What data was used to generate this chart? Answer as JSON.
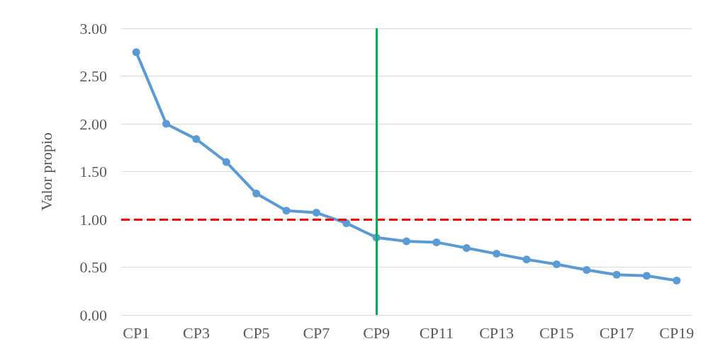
{
  "chart_data": {
    "type": "line",
    "ylabel": "Valor propio",
    "categories": [
      "CP1",
      null,
      "CP3",
      null,
      "CP5",
      null,
      "CP7",
      null,
      "CP9",
      null,
      "CP11",
      null,
      "CP13",
      null,
      "CP15",
      null,
      "CP17",
      null,
      "CP19"
    ],
    "series": [
      {
        "color": "#5b9bd5",
        "values": [
          2.75,
          2.0,
          1.84,
          1.6,
          1.27,
          1.09,
          1.07,
          0.96,
          0.81,
          0.77,
          0.76,
          0.7,
          0.64,
          0.58,
          0.53,
          0.47,
          0.42,
          0.41,
          0.36
        ]
      }
    ],
    "ylim": [
      0,
      3
    ],
    "yticks": [
      {
        "value": 0,
        "label": "0.00"
      },
      {
        "value": 0.5,
        "label": "0.50"
      },
      {
        "value": 1,
        "label": "1.00"
      },
      {
        "value": 1.5,
        "label": "1.50"
      },
      {
        "value": 2,
        "label": "2.00"
      },
      {
        "value": 2.5,
        "label": "2.50"
      },
      {
        "value": 3,
        "label": "3.00"
      }
    ],
    "ref_lines": [
      {
        "axis": "y",
        "value": 1,
        "color": "#ff0000",
        "line_style": "dashed"
      },
      {
        "axis": "x",
        "value": "CP9",
        "color": "#00b050",
        "line_style": "solid"
      }
    ],
    "grid": "y",
    "marker": "circle",
    "line_style": "solid"
  }
}
